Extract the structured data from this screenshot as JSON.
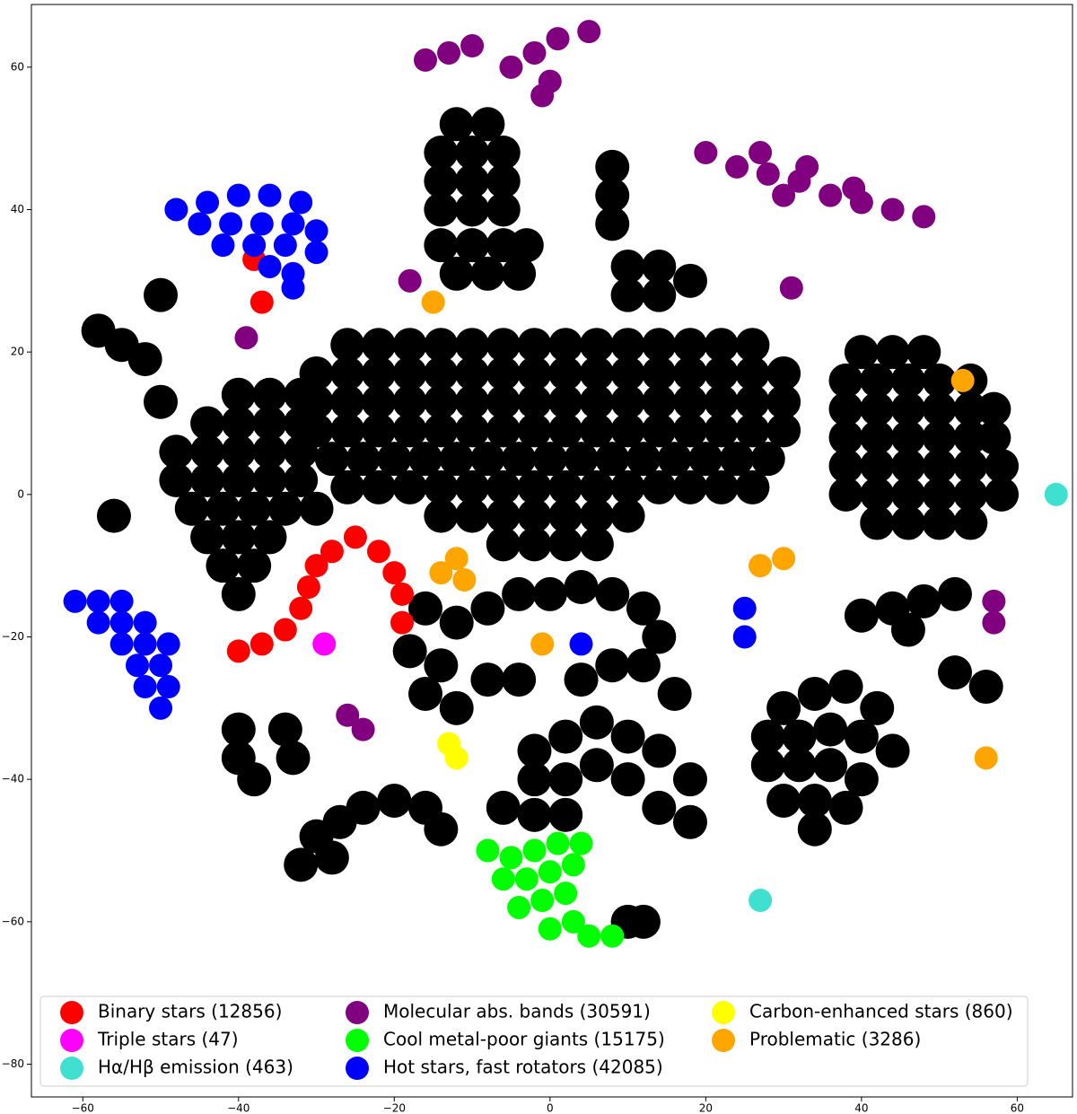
{
  "chart_data": {
    "type": "scatter",
    "xlim": [
      -66.6,
      67.1
    ],
    "ylim": [
      -84.6,
      68.8
    ],
    "xticks": [
      {
        "value": -60,
        "label": "−60"
      },
      {
        "value": -40,
        "label": "−40"
      },
      {
        "value": -20,
        "label": "−20"
      },
      0,
      20,
      40,
      60
    ],
    "yticks": [
      {
        "value": -80,
        "label": "−80"
      },
      {
        "value": -60,
        "label": "−60"
      },
      {
        "value": -40,
        "label": "−40"
      },
      {
        "value": -20,
        "label": "−20"
      },
      0,
      20,
      40,
      60
    ],
    "legend": "lower left",
    "series": [
      {
        "color": "#000000",
        "x": [
          -26,
          -22,
          -18,
          -14,
          -10,
          -6,
          -2,
          2,
          6,
          10,
          14,
          18,
          22,
          26,
          -30,
          -26,
          -22,
          -18,
          -14,
          -10,
          -6,
          -2,
          2,
          6,
          10,
          14,
          18,
          22,
          26,
          30,
          -30,
          -26,
          -22,
          -18,
          -14,
          -10,
          -6,
          -2,
          2,
          6,
          10,
          14,
          18,
          22,
          26,
          30,
          -30,
          -26,
          -22,
          -18,
          -14,
          -10,
          -6,
          -2,
          2,
          6,
          10,
          14,
          18,
          22,
          26,
          30,
          -28,
          -24,
          -20,
          -16,
          -12,
          -8,
          -4,
          0,
          4,
          8,
          12,
          16,
          20,
          24,
          28,
          -26,
          -22,
          -18,
          -14,
          -10,
          -6,
          -2,
          2,
          6,
          10,
          14,
          18,
          22,
          26,
          -14,
          -10,
          -6,
          -2,
          2,
          6,
          10,
          -6,
          -2,
          2,
          6,
          -40,
          -36,
          -32,
          -44,
          -40,
          -36,
          -32,
          -48,
          -44,
          -40,
          -36,
          -32,
          -48,
          -44,
          -40,
          -36,
          -32,
          -46,
          -42,
          -38,
          -34,
          -30,
          -44,
          -40,
          -36,
          -42,
          -38,
          -40,
          40,
          44,
          48,
          38,
          42,
          46,
          50,
          54,
          38,
          42,
          46,
          50,
          54,
          57,
          38,
          42,
          46,
          50,
          54,
          57,
          38,
          42,
          46,
          50,
          54,
          58,
          38,
          42,
          46,
          50,
          54,
          58,
          42,
          46,
          50,
          54,
          -12,
          -8,
          -14,
          -10,
          -6,
          -14,
          -10,
          -6,
          -14,
          -10,
          -6,
          -14,
          -10,
          -6,
          -3,
          -12,
          -8,
          -4,
          8,
          8,
          8,
          10,
          14,
          10,
          14,
          18,
          -16,
          -12,
          -8,
          -4,
          0,
          4,
          8,
          12,
          14,
          -18,
          -14,
          -8,
          -4,
          4,
          8,
          12,
          -16,
          -12,
          16,
          -2,
          2,
          6,
          10,
          -2,
          2,
          6,
          10,
          -6,
          -2,
          2,
          14,
          18,
          14,
          18,
          30,
          34,
          38,
          42,
          28,
          32,
          36,
          40,
          44,
          28,
          32,
          36,
          40,
          30,
          34,
          38,
          34,
          40,
          44,
          48,
          52,
          46,
          52,
          56,
          -32,
          -30,
          -27,
          -24,
          -20,
          -16,
          -14,
          -28,
          -40,
          -40,
          -38,
          -34,
          -33,
          -56,
          -55,
          -52,
          -50,
          -58,
          -50,
          10,
          12
        ],
        "y": [
          21,
          21,
          21,
          21,
          21,
          21,
          21,
          21,
          21,
          21,
          21,
          21,
          21,
          21,
          17,
          17,
          17,
          17,
          17,
          17,
          17,
          17,
          17,
          17,
          17,
          17,
          17,
          17,
          17,
          17,
          13,
          13,
          13,
          13,
          13,
          13,
          13,
          13,
          13,
          13,
          13,
          13,
          13,
          13,
          13,
          13,
          9,
          9,
          9,
          9,
          9,
          9,
          9,
          9,
          9,
          9,
          9,
          9,
          9,
          9,
          9,
          9,
          5,
          5,
          5,
          5,
          5,
          5,
          5,
          5,
          5,
          5,
          5,
          5,
          5,
          5,
          5,
          1,
          1,
          1,
          1,
          1,
          1,
          1,
          1,
          1,
          1,
          1,
          1,
          1,
          1,
          -3,
          -3,
          -3,
          -3,
          -3,
          -3,
          -3,
          -7,
          -7,
          -7,
          -7,
          14,
          14,
          14,
          10,
          10,
          10,
          10,
          6,
          6,
          6,
          6,
          6,
          2,
          2,
          2,
          2,
          2,
          -2,
          -2,
          -2,
          -2,
          -2,
          -6,
          -6,
          -6,
          -10,
          -10,
          -14,
          20,
          20,
          20,
          16,
          16,
          16,
          16,
          16,
          12,
          12,
          12,
          12,
          12,
          12,
          8,
          8,
          8,
          8,
          8,
          8,
          4,
          4,
          4,
          4,
          4,
          4,
          0,
          0,
          0,
          0,
          0,
          0,
          -4,
          -4,
          -4,
          -4,
          52,
          52,
          48,
          48,
          48,
          44,
          44,
          44,
          40,
          40,
          40,
          35,
          35,
          35,
          35,
          31,
          31,
          31,
          46,
          42,
          38,
          32,
          32,
          28,
          28,
          30,
          -16,
          -18,
          -16,
          -14,
          -14,
          -13,
          -14,
          -16,
          -20,
          -22,
          -24,
          -26,
          -26,
          -26,
          -24,
          -24,
          -28,
          -30,
          -28,
          -36,
          -34,
          -32,
          -34,
          -40,
          -40,
          -38,
          -40,
          -44,
          -45,
          -45,
          -36,
          -40,
          -44,
          -46,
          -30,
          -28,
          -27,
          -30,
          -34,
          -34,
          -33,
          -34,
          -36,
          -38,
          -38,
          -38,
          -40,
          -43,
          -43,
          -44,
          -47,
          -17,
          -16,
          -15,
          -14,
          -19,
          -25,
          -27,
          -52,
          -48,
          -46,
          -44,
          -43,
          -44,
          -47,
          -51,
          -33,
          -37,
          -40,
          -33,
          -37,
          -3,
          21,
          19,
          13,
          23,
          28,
          -60,
          -60
        ]
      },
      {
        "name": "Binary stars (12856)",
        "color": "#ff0000",
        "x": [
          -40,
          -37,
          -34,
          -32,
          -31,
          -30,
          -28,
          -25,
          -22,
          -20,
          -19,
          -19,
          -38,
          -37
        ],
        "y": [
          -22,
          -21,
          -19,
          -16,
          -13,
          -10,
          -8,
          -6,
          -8,
          -11,
          -14,
          -18,
          33,
          27
        ]
      },
      {
        "name": "Triple stars (47)",
        "color": "#ff00ff",
        "x": [
          -29
        ],
        "y": [
          -21
        ]
      },
      {
        "name": "Hα/Hβ emission (463)",
        "color": "#40e0d0",
        "x": [
          65,
          27
        ],
        "y": [
          0,
          -57
        ]
      },
      {
        "name": "Molecular abs. bands (30591)",
        "color": "#800080",
        "x": [
          -16,
          -13,
          -10,
          -5,
          -2,
          1,
          5,
          0,
          -1,
          20,
          24,
          28,
          32,
          36,
          40,
          44,
          48,
          27,
          33,
          39,
          30,
          -39,
          -18,
          31,
          -26,
          -24,
          57,
          57
        ],
        "y": [
          61,
          62,
          63,
          60,
          62,
          64,
          65,
          58,
          56,
          48,
          46,
          45,
          44,
          42,
          41,
          40,
          39,
          48,
          46,
          43,
          42,
          22,
          30,
          29,
          -31,
          -33,
          -15,
          -18
        ]
      },
      {
        "name": "Cool metal-poor giants (15175)",
        "color": "#00ff00",
        "x": [
          -8,
          -5,
          -2,
          1,
          4,
          -6,
          -3,
          0,
          -4,
          -1,
          2,
          0,
          3,
          5,
          8,
          3
        ],
        "y": [
          -50,
          -51,
          -50,
          -49,
          -49,
          -54,
          -54,
          -53,
          -58,
          -57,
          -56,
          -61,
          -60,
          -62,
          -62,
          -52
        ]
      },
      {
        "name": "Hot stars, fast rotators (42085)",
        "color": "#0000ff",
        "x": [
          -48,
          -44,
          -40,
          -36,
          -32,
          -45,
          -41,
          -37,
          -33,
          -30,
          -42,
          -38,
          -34,
          -30,
          -36,
          -33,
          -33,
          -61,
          -58,
          -55,
          -58,
          -55,
          -52,
          -55,
          -52,
          -49,
          -53,
          -50,
          -52,
          -49,
          -50,
          25,
          25,
          4
        ],
        "y": [
          40,
          41,
          42,
          42,
          41,
          38,
          38,
          38,
          38,
          37,
          35,
          35,
          35,
          34,
          32,
          31,
          29,
          -15,
          -15,
          -15,
          -18,
          -18,
          -18,
          -21,
          -21,
          -21,
          -24,
          -24,
          -27,
          -27,
          -30,
          -16,
          -20,
          -21
        ]
      },
      {
        "name": "Carbon-enhanced stars (860)",
        "color": "#ffff00",
        "x": [
          -13,
          -12
        ],
        "y": [
          -35,
          -37
        ]
      },
      {
        "name": "Problematic (3286)",
        "color": "#ffa500",
        "x": [
          -12,
          -11,
          -14,
          -1,
          27,
          30,
          53,
          56,
          -15
        ],
        "y": [
          -9,
          -12,
          -11,
          -21,
          -10,
          -9,
          16,
          -37,
          27
        ]
      }
    ]
  }
}
